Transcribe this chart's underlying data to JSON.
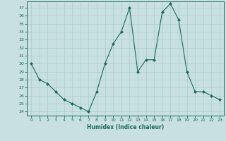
{
  "x": [
    0,
    1,
    2,
    3,
    4,
    5,
    6,
    7,
    8,
    9,
    10,
    11,
    12,
    13,
    14,
    15,
    16,
    17,
    18,
    19,
    20,
    21,
    22,
    23
  ],
  "y": [
    30,
    28,
    27.5,
    26.5,
    25.5,
    25,
    24.5,
    24,
    26.5,
    30,
    32.5,
    34,
    37,
    29,
    30.5,
    30.5,
    36.5,
    37.5,
    35.5,
    29,
    26.5,
    26.5,
    26,
    25.5
  ],
  "line_color": "#1a6b5e",
  "marker_color": "#1a6b5e",
  "bg_color": "#c8e0e0",
  "grid_color": "#aacccc",
  "xlabel": "Humidex (Indice chaleur)",
  "xlim": [
    -0.5,
    23.5
  ],
  "ylim": [
    23.5,
    37.8
  ],
  "yticks": [
    24,
    25,
    26,
    27,
    28,
    29,
    30,
    31,
    32,
    33,
    34,
    35,
    36,
    37
  ],
  "xticks": [
    0,
    1,
    2,
    3,
    4,
    5,
    6,
    7,
    8,
    9,
    10,
    11,
    12,
    13,
    14,
    15,
    16,
    17,
    18,
    19,
    20,
    21,
    22,
    23
  ]
}
